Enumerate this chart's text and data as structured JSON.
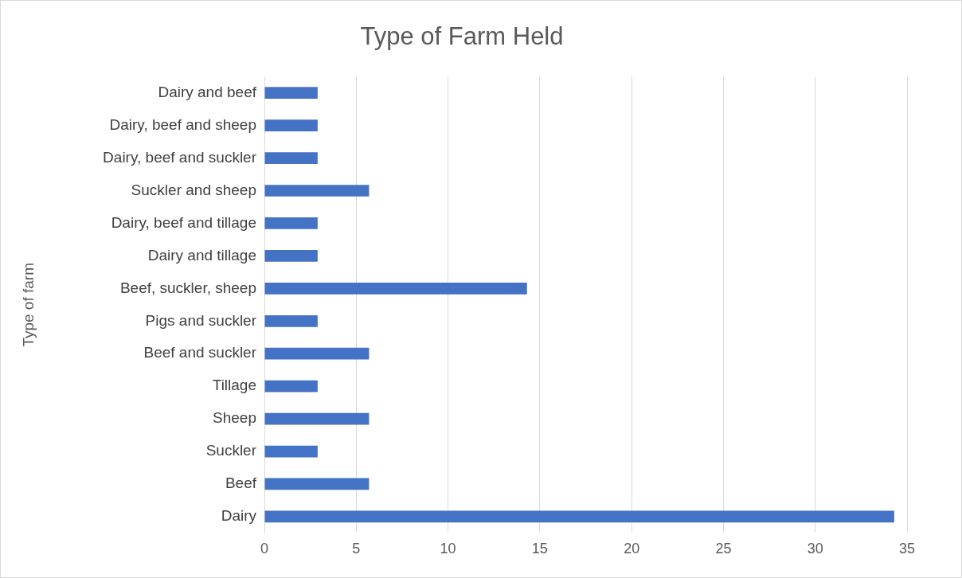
{
  "chart_data": {
    "type": "bar",
    "orientation": "horizontal",
    "title": "Type of Farm Held",
    "ylabel": "Type of farm",
    "categories": [
      "Dairy and beef",
      "Dairy, beef and sheep",
      "Dairy, beef and suckler",
      "Suckler and sheep",
      "Dairy, beef and tillage",
      "Dairy and tillage",
      "Beef, suckler, sheep",
      "Pigs and suckler",
      "Beef and suckler",
      "Tillage",
      "Sheep",
      "Suckler",
      "Beef",
      "Dairy"
    ],
    "values": [
      2.9,
      2.9,
      2.9,
      5.7,
      2.9,
      2.9,
      14.3,
      2.9,
      5.7,
      2.9,
      5.7,
      2.9,
      5.7,
      34.3
    ],
    "color": "#4472c4",
    "xlim": [
      0,
      35
    ],
    "xticks": [
      0,
      5,
      10,
      15,
      20,
      25,
      30,
      35
    ],
    "grid": "x",
    "legend": false
  }
}
